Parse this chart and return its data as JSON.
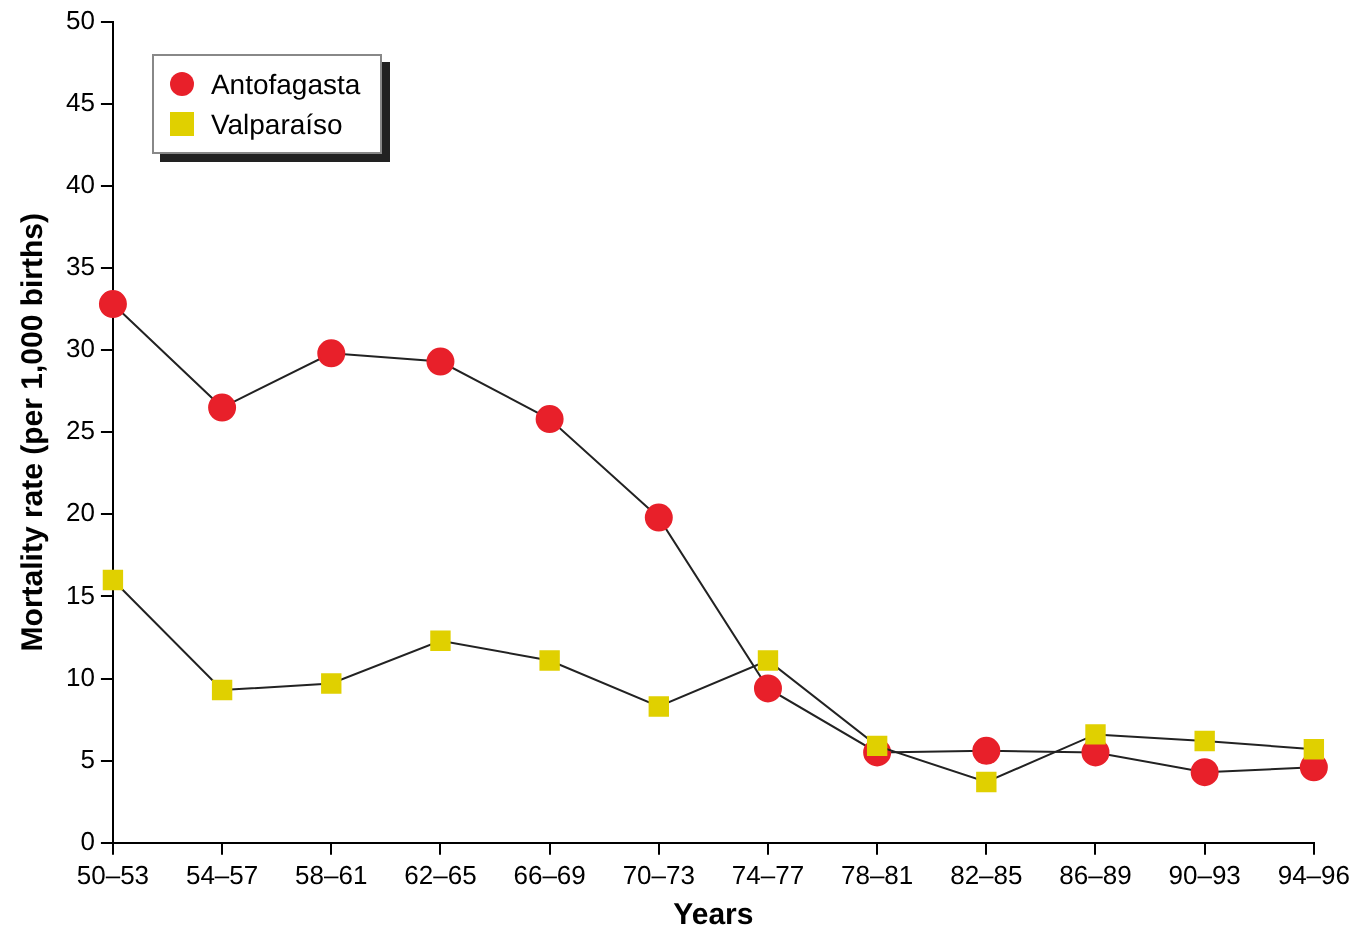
{
  "chart_data": {
    "type": "line",
    "xlabel": "Years",
    "ylabel": "Mortality rate (per 1,000 births)",
    "categories": [
      "50–53",
      "54–57",
      "58–61",
      "62–65",
      "66–69",
      "70–73",
      "74–77",
      "78–81",
      "82–85",
      "86–89",
      "90–93",
      "94–96"
    ],
    "series": [
      {
        "name": "Antofagasta",
        "color": "#e8202a",
        "marker": "circle",
        "values": [
          32.8,
          26.5,
          29.8,
          29.3,
          25.8,
          19.8,
          9.4,
          5.5,
          5.6,
          5.5,
          4.3,
          4.6
        ]
      },
      {
        "name": "Valparaíso",
        "color": "#e0d000",
        "marker": "square",
        "values": [
          16.0,
          9.3,
          9.7,
          12.3,
          11.1,
          8.3,
          11.1,
          5.9,
          3.7,
          6.6,
          6.2,
          5.7
        ]
      }
    ],
    "ylim": [
      0,
      50
    ],
    "yticks": [
      0,
      5,
      10,
      15,
      20,
      25,
      30,
      35,
      40,
      45,
      50
    ],
    "grid": false,
    "legend": "top left"
  }
}
